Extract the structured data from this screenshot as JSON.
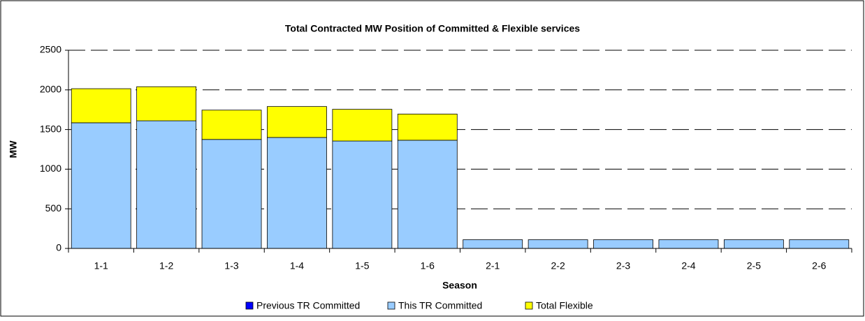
{
  "chart_data": {
    "type": "stacked_bar",
    "title": "Total Contracted MW Position of Committed & Flexible services",
    "x_label": "Season",
    "y_label": "MW",
    "categories": [
      "1-1",
      "1-2",
      "1-3",
      "1-4",
      "1-5",
      "1-6",
      "2-1",
      "2-2",
      "2-3",
      "2-4",
      "2-5",
      "2-6"
    ],
    "series": [
      {
        "name": "Previous TR Committed",
        "color": "#0000ff",
        "values": [
          0,
          0,
          0,
          0,
          0,
          0,
          0,
          0,
          0,
          0,
          0,
          0
        ]
      },
      {
        "name": "This TR Committed",
        "color": "#99ccff",
        "values": [
          1585,
          1610,
          1375,
          1400,
          1355,
          1365,
          110,
          110,
          110,
          110,
          110,
          110
        ]
      },
      {
        "name": "Total Flexible",
        "color": "#ffff00",
        "values": [
          430,
          430,
          370,
          390,
          400,
          330,
          0,
          0,
          0,
          0,
          0,
          0
        ]
      }
    ],
    "ylim": [
      0,
      2500
    ],
    "yticks": [
      0,
      500,
      1000,
      1500,
      2000,
      2500
    ],
    "grid": true,
    "legend": "bottom"
  }
}
